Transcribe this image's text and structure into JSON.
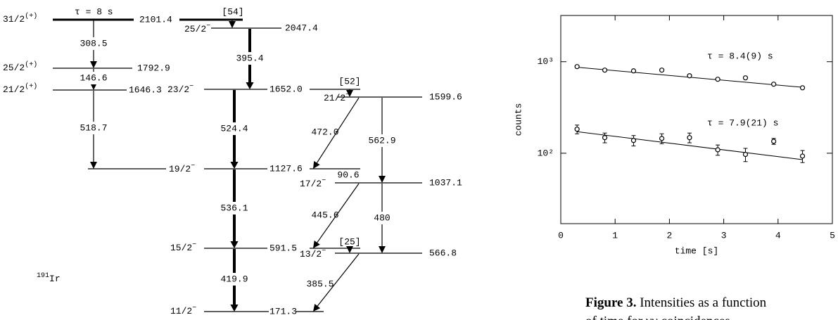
{
  "level_scheme": {
    "nucleus": {
      "mass": "191",
      "symbol": "Ir"
    },
    "lifetime": "τ =  8 s",
    "levels": [
      {
        "spin": "31/2",
        "parity": "(+)",
        "energy": "2101.4"
      },
      {
        "spin": "25/2",
        "parity": "(+)",
        "energy": "1792.9"
      },
      {
        "spin": "21/2",
        "parity": "(+)",
        "energy": "1646.3"
      },
      {
        "spin": "25/2",
        "parity": "−",
        "energy": "2047.4"
      },
      {
        "spin": "23/2",
        "parity": "−",
        "energy": "1652.0"
      },
      {
        "spin": "19/2",
        "parity": "−",
        "energy": "1127.6"
      },
      {
        "spin": "15/2",
        "parity": "−",
        "energy": "591.5"
      },
      {
        "spin": "11/2",
        "parity": "−",
        "energy": "171.3"
      },
      {
        "spin": "21/2",
        "parity": "−",
        "energy": "1599.6"
      },
      {
        "spin": "17/2",
        "parity": "−",
        "energy": "1037.1"
      },
      {
        "spin": "13/2",
        "parity": "−",
        "energy": "566.8"
      }
    ],
    "transitions": [
      "308.5",
      "146.6",
      "518.7",
      "[54]",
      "395.4",
      "524.4",
      "536.1",
      "419.9",
      "[52]",
      "472.0",
      "562.9",
      "90.6",
      "445.6",
      "480",
      "[25]",
      "385.5"
    ]
  },
  "chart_data": {
    "type": "scatter",
    "xlabel": "time [s]",
    "ylabel": "counts",
    "xlim": [
      0,
      5
    ],
    "xticks": [
      0,
      1,
      2,
      3,
      4,
      5
    ],
    "ylog": true,
    "ylim": [
      17,
      3200
    ],
    "yticks": [
      {
        "value": 100,
        "label": "10²"
      },
      {
        "value": 1000,
        "label": "10³"
      }
    ],
    "x": [
      0.3,
      0.81,
      1.34,
      1.86,
      2.37,
      2.89,
      3.4,
      3.92,
      4.45
    ],
    "series": [
      {
        "values": [
          884,
          809,
          794,
          809,
          702,
          643,
          666,
          568,
          519
        ],
        "color": "#000000",
        "fit": {
          "x": [
            0.3,
            4.45
          ],
          "values": [
            870,
            525
          ]
        },
        "annotation": "τ = 8.4(9) s"
      },
      {
        "values": [
          183,
          148,
          138,
          145,
          148,
          109,
          97,
          135,
          93
        ],
        "errors": [
          20,
          18,
          18,
          18,
          18,
          14,
          16,
          10,
          14
        ],
        "color": "#000000",
        "fit": {
          "x": [
            0.3,
            4.45
          ],
          "values": [
            172,
            85
          ]
        },
        "annotation": "τ = 7.9(21) s"
      }
    ],
    "caption": {
      "label": "Figure 3.",
      "lines": [
        "Intensities as a function",
        "of time for γγ coincidences"
      ]
    }
  }
}
